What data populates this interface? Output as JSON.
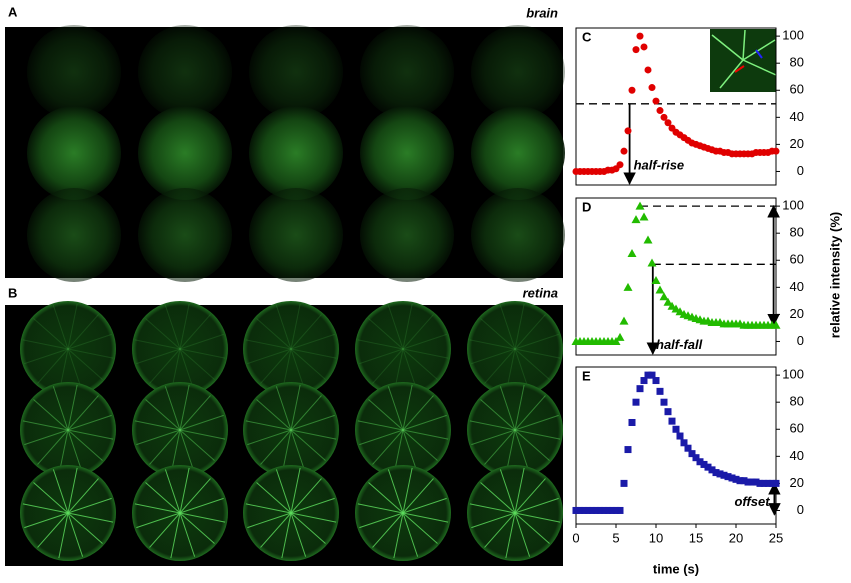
{
  "panels": [
    {
      "label": "A",
      "title": "brain"
    },
    {
      "label": "B",
      "title": "retina"
    }
  ],
  "ylabel": "relative intensity (%)",
  "chart_data": [
    {
      "type": "scatter",
      "label": "C",
      "annotation": "half-rise",
      "color": "#e00000",
      "marker": "circle",
      "x": [
        0,
        0.5,
        1,
        1.5,
        2,
        2.5,
        3,
        3.5,
        4,
        4.5,
        5,
        5.5,
        6,
        6.5,
        7,
        7.5,
        8,
        8.5,
        9,
        9.5,
        10,
        10.5,
        11,
        11.5,
        12,
        12.5,
        13,
        13.5,
        14,
        14.5,
        15,
        15.5,
        16,
        16.5,
        17,
        17.5,
        18,
        18.5,
        19,
        19.5,
        20,
        20.5,
        21,
        21.5,
        22,
        22.5,
        23,
        23.5,
        24,
        24.5,
        25
      ],
      "values": [
        0,
        0,
        0,
        0,
        0,
        0,
        0,
        0,
        1,
        1,
        2,
        5,
        15,
        30,
        60,
        90,
        100,
        92,
        75,
        62,
        52,
        45,
        40,
        36,
        32,
        29,
        27,
        25,
        23,
        21,
        20,
        19,
        18,
        17,
        16,
        15,
        15,
        14,
        14,
        13,
        13,
        13,
        13,
        13,
        13,
        14,
        14,
        14,
        14,
        15,
        15
      ],
      "guides": [
        {
          "x1": 0,
          "x2": 25,
          "y1": 50,
          "y2": 50,
          "dash": true,
          "heads": 0
        },
        {
          "x1": 6.7,
          "x2": 6.7,
          "y1": 50,
          "y2": -9,
          "dash": false,
          "heads": 1
        }
      ],
      "xlim": [
        0,
        25
      ],
      "ylim": [
        -10,
        106
      ],
      "yticks": [
        0,
        20,
        40,
        60,
        80,
        100
      ]
    },
    {
      "type": "scatter",
      "label": "D",
      "annotation": "half-fall",
      "color": "#22bb00",
      "marker": "triangle",
      "x": [
        0,
        0.5,
        1,
        1.5,
        2,
        2.5,
        3,
        3.5,
        4,
        4.5,
        5,
        5.5,
        6,
        6.5,
        7,
        7.5,
        8,
        8.5,
        9,
        9.5,
        10,
        10.5,
        11,
        11.5,
        12,
        12.5,
        13,
        13.5,
        14,
        14.5,
        15,
        15.5,
        16,
        16.5,
        17,
        17.5,
        18,
        18.5,
        19,
        19.5,
        20,
        20.5,
        21,
        21.5,
        22,
        22.5,
        23,
        23.5,
        24,
        24.5,
        25
      ],
      "values": [
        0,
        0,
        0,
        0,
        0,
        0,
        0,
        0,
        0,
        0,
        0,
        3,
        15,
        40,
        65,
        90,
        100,
        92,
        75,
        58,
        45,
        38,
        33,
        29,
        26,
        24,
        22,
        20,
        19,
        18,
        17,
        16,
        15,
        15,
        14,
        14,
        14,
        13,
        13,
        13,
        13,
        13,
        12,
        12,
        12,
        12,
        12,
        12,
        12,
        12,
        12
      ],
      "guides": [
        {
          "x1": 8,
          "x2": 25,
          "y1": 100,
          "y2": 100,
          "dash": true,
          "heads": 0
        },
        {
          "x1": 9.6,
          "x2": 25,
          "y1": 57,
          "y2": 57,
          "dash": true,
          "heads": 0
        },
        {
          "x1": 9.6,
          "x2": 9.6,
          "y1": 57,
          "y2": -9,
          "dash": false,
          "heads": 1
        },
        {
          "x1": 24.7,
          "x2": 24.7,
          "y1": 100,
          "y2": 12,
          "dash": false,
          "heads": 2
        }
      ],
      "xlim": [
        0,
        25
      ],
      "ylim": [
        -10,
        106
      ],
      "yticks": [
        0,
        20,
        40,
        60,
        80,
        100
      ]
    },
    {
      "type": "scatter",
      "label": "E",
      "annotation": "offset",
      "color": "#1a1aa8",
      "marker": "square",
      "x": [
        0,
        0.5,
        1,
        1.5,
        2,
        2.5,
        3,
        3.5,
        4,
        4.5,
        5,
        5.5,
        6,
        6.5,
        7,
        7.5,
        8,
        8.5,
        9,
        9.5,
        10,
        10.5,
        11,
        11.5,
        12,
        12.5,
        13,
        13.5,
        14,
        14.5,
        15,
        15.5,
        16,
        16.5,
        17,
        17.5,
        18,
        18.5,
        19,
        19.5,
        20,
        20.5,
        21,
        21.5,
        22,
        22.5,
        23,
        23.5,
        24,
        24.5,
        25
      ],
      "values": [
        0,
        0,
        0,
        0,
        0,
        0,
        0,
        0,
        0,
        0,
        0,
        0,
        20,
        45,
        65,
        80,
        90,
        96,
        100,
        100,
        96,
        88,
        80,
        73,
        66,
        60,
        55,
        50,
        46,
        42,
        39,
        36,
        34,
        32,
        30,
        28,
        27,
        26,
        25,
        24,
        23,
        22,
        22,
        21,
        21,
        21,
        20,
        20,
        20,
        20,
        20
      ],
      "guides": [
        {
          "x1": 24.8,
          "x2": 24.8,
          "y1": 20,
          "y2": -3,
          "dash": false,
          "heads": 2
        }
      ],
      "xlabel": "time (s)",
      "xlim": [
        0,
        25
      ],
      "xticks": [
        0,
        5,
        10,
        15,
        20,
        25
      ],
      "ylim": [
        -10,
        106
      ],
      "yticks": [
        0,
        20,
        40,
        60,
        80,
        100
      ]
    }
  ]
}
